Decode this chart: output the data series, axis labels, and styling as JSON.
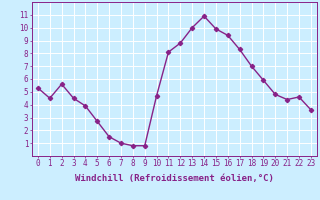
{
  "x": [
    0,
    1,
    2,
    3,
    4,
    5,
    6,
    7,
    8,
    9,
    10,
    11,
    12,
    13,
    14,
    15,
    16,
    17,
    18,
    19,
    20,
    21,
    22,
    23
  ],
  "y": [
    5.3,
    4.5,
    5.6,
    4.5,
    3.9,
    2.7,
    1.5,
    1.0,
    0.8,
    0.8,
    4.7,
    8.1,
    8.8,
    10.0,
    10.9,
    9.9,
    9.4,
    8.3,
    7.0,
    5.9,
    4.8,
    4.4,
    4.6,
    3.6
  ],
  "line_color": "#882288",
  "marker": "D",
  "marker_size": 2.2,
  "linewidth": 1.0,
  "xlabel": "Windchill (Refroidissement éolien,°C)",
  "xlabel_fontsize": 6.5,
  "background_color": "#cceeff",
  "grid_color": "#ffffff",
  "xlim": [
    -0.5,
    23.5
  ],
  "ylim": [
    0,
    12
  ],
  "xticks": [
    0,
    1,
    2,
    3,
    4,
    5,
    6,
    7,
    8,
    9,
    10,
    11,
    12,
    13,
    14,
    15,
    16,
    17,
    18,
    19,
    20,
    21,
    22,
    23
  ],
  "yticks": [
    1,
    2,
    3,
    4,
    5,
    6,
    7,
    8,
    9,
    10,
    11
  ],
  "tick_fontsize": 5.5,
  "tick_color": "#882288",
  "axis_color": "#882288"
}
